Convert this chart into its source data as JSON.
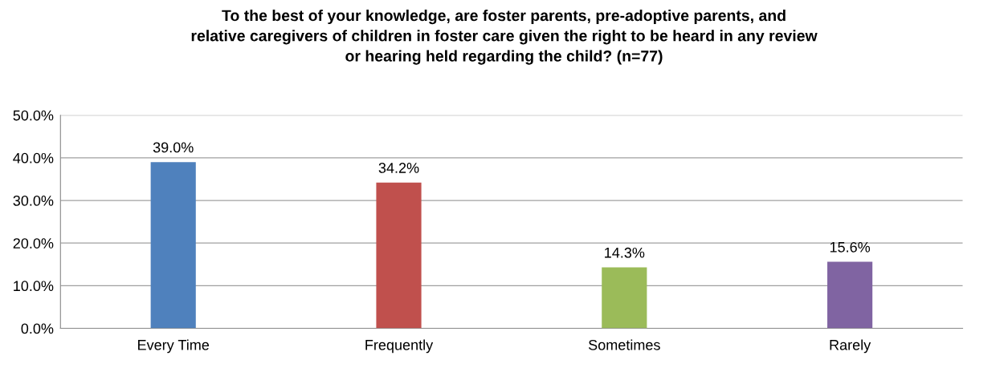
{
  "chart_data": {
    "type": "bar",
    "title": "To the best of your knowledge, are foster parents, pre-adoptive parents, and\nrelative caregivers of children in foster care given the right to be heard in any review\nor hearing held regarding the child? (n=77)",
    "categories": [
      "Every Time",
      "Frequently",
      "Sometimes",
      "Rarely"
    ],
    "values": [
      39.0,
      34.2,
      14.3,
      15.6
    ],
    "value_labels": [
      "39.0%",
      "34.2%",
      "14.3%",
      "15.6%"
    ],
    "colors": [
      "#4f81bd",
      "#c0504d",
      "#9bbb59",
      "#8064a2"
    ],
    "ylim": [
      0,
      50
    ],
    "yticks": [
      {
        "value": 0,
        "label": "0.0%"
      },
      {
        "value": 10,
        "label": "10.0%"
      },
      {
        "value": 20,
        "label": "20.0%"
      },
      {
        "value": 30,
        "label": "30.0%"
      },
      {
        "value": 40,
        "label": "40.0%"
      },
      {
        "value": 50,
        "label": "50.0%"
      }
    ],
    "grid": "y",
    "legend": false
  }
}
